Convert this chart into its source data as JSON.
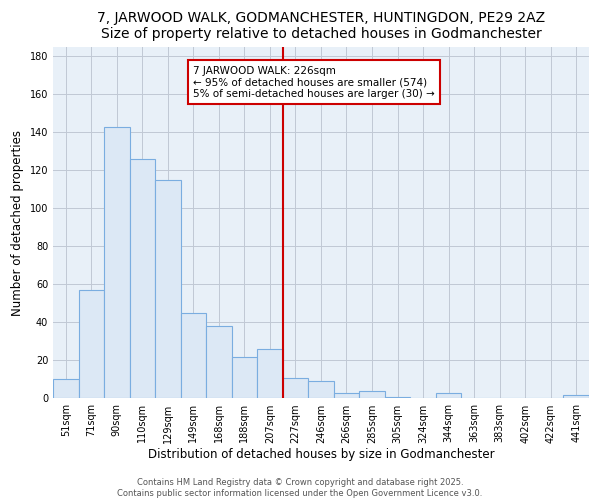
{
  "title": "7, JARWOOD WALK, GODMANCHESTER, HUNTINGDON, PE29 2AZ",
  "subtitle": "Size of property relative to detached houses in Godmanchester",
  "xlabel": "Distribution of detached houses by size in Godmanchester",
  "ylabel": "Number of detached properties",
  "bar_labels": [
    "51sqm",
    "71sqm",
    "90sqm",
    "110sqm",
    "129sqm",
    "149sqm",
    "168sqm",
    "188sqm",
    "207sqm",
    "227sqm",
    "246sqm",
    "266sqm",
    "285sqm",
    "305sqm",
    "324sqm",
    "344sqm",
    "363sqm",
    "383sqm",
    "402sqm",
    "422sqm",
    "441sqm"
  ],
  "bar_values": [
    10,
    57,
    143,
    126,
    115,
    45,
    38,
    22,
    26,
    11,
    9,
    3,
    4,
    1,
    0,
    3,
    0,
    0,
    0,
    0,
    2
  ],
  "bar_color": "#dce8f5",
  "bar_edge_color": "#7aade0",
  "vline_color": "#cc0000",
  "annotation_title": "7 JARWOOD WALK: 226sqm",
  "annotation_line1": "← 95% of detached houses are smaller (574)",
  "annotation_line2": "5% of semi-detached houses are larger (30) →",
  "annotation_box_color": "#ffffff",
  "annotation_box_edge_color": "#cc0000",
  "ylim": [
    0,
    185
  ],
  "yticks": [
    0,
    20,
    40,
    60,
    80,
    100,
    120,
    140,
    160,
    180
  ],
  "footer1": "Contains HM Land Registry data © Crown copyright and database right 2025.",
  "footer2": "Contains public sector information licensed under the Open Government Licence v3.0.",
  "plot_bg_color": "#e8f0f8",
  "fig_bg_color": "#ffffff",
  "grid_color": "#c0c8d4",
  "title_fontsize": 10,
  "axis_label_fontsize": 8.5,
  "tick_fontsize": 7,
  "annotation_fontsize": 7.5,
  "footer_fontsize": 6
}
